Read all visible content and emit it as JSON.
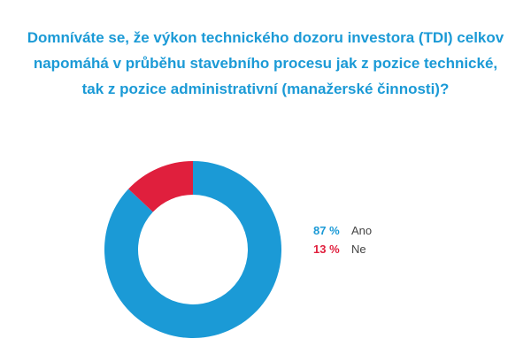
{
  "chart_data": {
    "type": "pie",
    "donut": true,
    "title": [
      "Domníváte se, že výkon technického dozoru investora (TDI) celkov",
      "napomáhá v průběhu stavebního procesu jak z pozice technické,",
      "tak z pozice administrativní (manažerské činnosti)?"
    ],
    "categories": [
      "Ano",
      "Ne"
    ],
    "values": [
      87,
      13
    ],
    "value_labels": [
      "87 %",
      "13 %"
    ],
    "colors": [
      "#1b9ad6",
      "#e01f3d"
    ],
    "legend_position": "right"
  }
}
